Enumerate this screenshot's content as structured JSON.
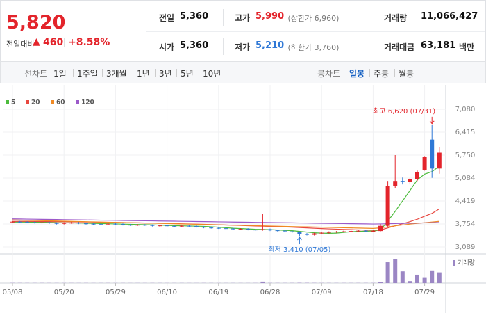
{
  "header": {
    "price": "5,820",
    "change_label": "전일대비",
    "change_arrow": "▲",
    "change": "460",
    "change_rate": "+8.58%",
    "stats": [
      {
        "label": "전일",
        "value": "5,360"
      },
      {
        "label": "고가",
        "value": "5,990",
        "note": "(상한가 6,960)"
      },
      {
        "label": "거래량",
        "value": "11,066,427"
      },
      {
        "label": "시가",
        "value": "5,360"
      },
      {
        "label": "저가",
        "value": "5,210",
        "note": "(하한가 3,760)"
      },
      {
        "label": "거래대금",
        "value": "63,181",
        "unit": "백만"
      }
    ]
  },
  "line_tabs": {
    "label": "선차트",
    "items": [
      "1일",
      "1주일",
      "3개월",
      "1년",
      "3년",
      "5년",
      "10년"
    ]
  },
  "candle_tabs": {
    "label": "봉차트",
    "items": [
      "일봉",
      "주봉",
      "월봉"
    ],
    "selected": "일봉"
  },
  "chart_data": {
    "type": "candlestick",
    "categories": [
      "05/08",
      null,
      null,
      null,
      null,
      null,
      null,
      "05/20",
      null,
      null,
      null,
      null,
      null,
      null,
      "05/29",
      null,
      null,
      null,
      null,
      null,
      null,
      "06/10",
      null,
      null,
      null,
      null,
      null,
      null,
      "06/19",
      null,
      null,
      null,
      null,
      null,
      null,
      "06/28",
      null,
      null,
      null,
      null,
      null,
      null,
      "07/09",
      null,
      null,
      null,
      null,
      null,
      null,
      "07/18",
      null,
      null,
      null,
      null,
      null,
      null,
      "07/29",
      null,
      null
    ],
    "open": [
      3800,
      3820,
      3810,
      3800,
      3790,
      3800,
      3780,
      3760,
      3780,
      3790,
      3770,
      3760,
      3750,
      3740,
      3760,
      3750,
      3730,
      3720,
      3730,
      3720,
      3700,
      3710,
      3690,
      3680,
      3700,
      3690,
      3670,
      3650,
      3640,
      3630,
      3620,
      3600,
      3610,
      3590,
      3580,
      3600,
      3570,
      3560,
      3540,
      3520,
      3470,
      3440,
      3480,
      3500,
      3520,
      3530,
      3540,
      3550,
      3560,
      3540,
      3550,
      3700,
      4850,
      5000,
      4980,
      5050,
      5320,
      6200,
      5360
    ],
    "high": [
      3840,
      3840,
      3830,
      3820,
      3820,
      3820,
      3800,
      3800,
      3810,
      3810,
      3790,
      3780,
      3770,
      3780,
      3780,
      3770,
      3750,
      3750,
      3750,
      3740,
      3730,
      3730,
      3710,
      3720,
      3720,
      3710,
      3690,
      3670,
      3660,
      3650,
      3640,
      3630,
      3630,
      3610,
      4040,
      3620,
      3590,
      3580,
      3560,
      3540,
      3490,
      3500,
      3520,
      3540,
      3550,
      3560,
      3570,
      3580,
      3580,
      3570,
      3750,
      5000,
      5750,
      5100,
      5080,
      5300,
      5720,
      6620,
      5990
    ],
    "low": [
      3780,
      3790,
      3780,
      3770,
      3770,
      3760,
      3740,
      3740,
      3760,
      3750,
      3740,
      3730,
      3720,
      3720,
      3730,
      3710,
      3700,
      3700,
      3700,
      3680,
      3680,
      3670,
      3660,
      3660,
      3670,
      3650,
      3630,
      3620,
      3610,
      3600,
      3580,
      3580,
      3570,
      3560,
      3560,
      3550,
      3540,
      3520,
      3500,
      3410,
      3420,
      3420,
      3460,
      3480,
      3500,
      3510,
      3520,
      3530,
      3520,
      3520,
      3540,
      3680,
      4800,
      4900,
      4900,
      5000,
      5300,
      5090,
      5210
    ],
    "close": [
      3820,
      3810,
      3800,
      3790,
      3800,
      3780,
      3760,
      3780,
      3790,
      3770,
      3760,
      3750,
      3740,
      3760,
      3750,
      3730,
      3720,
      3730,
      3720,
      3700,
      3710,
      3690,
      3680,
      3700,
      3690,
      3670,
      3650,
      3640,
      3630,
      3620,
      3600,
      3610,
      3590,
      3580,
      3600,
      3570,
      3560,
      3540,
      3520,
      3470,
      3440,
      3480,
      3500,
      3520,
      3530,
      3540,
      3550,
      3560,
      3540,
      3550,
      3700,
      4850,
      5000,
      4980,
      5050,
      5250,
      5700,
      5360,
      5820
    ],
    "up_color": "#e3242b",
    "down_color": "#2f78d6",
    "series": [
      {
        "name": "5",
        "color": "#4cbb3c",
        "values": [
          3810,
          3810,
          3810,
          3805,
          3805,
          3800,
          3790,
          3785,
          3785,
          3780,
          3775,
          3770,
          3765,
          3760,
          3755,
          3750,
          3745,
          3740,
          3735,
          3730,
          3720,
          3710,
          3705,
          3700,
          3695,
          3690,
          3685,
          3675,
          3660,
          3645,
          3630,
          3620,
          3610,
          3600,
          3595,
          3590,
          3580,
          3570,
          3560,
          3540,
          3520,
          3500,
          3490,
          3485,
          3490,
          3510,
          3530,
          3540,
          3545,
          3550,
          3580,
          3840,
          4120,
          4420,
          4720,
          5030,
          5200,
          5270,
          5430
        ]
      },
      {
        "name": "20",
        "color": "#e8473f",
        "values": [
          3830,
          3830,
          3828,
          3826,
          3824,
          3822,
          3820,
          3818,
          3816,
          3814,
          3812,
          3810,
          3806,
          3802,
          3798,
          3794,
          3790,
          3786,
          3782,
          3778,
          3774,
          3770,
          3765,
          3760,
          3755,
          3750,
          3745,
          3738,
          3731,
          3724,
          3717,
          3710,
          3703,
          3696,
          3690,
          3684,
          3676,
          3668,
          3660,
          3650,
          3640,
          3630,
          3620,
          3612,
          3604,
          3596,
          3590,
          3584,
          3578,
          3574,
          3580,
          3640,
          3700,
          3760,
          3820,
          3890,
          3980,
          4060,
          4190
        ]
      },
      {
        "name": "60",
        "color": "#f08a24",
        "values": [
          3870,
          3865,
          3860,
          3855,
          3850,
          3845,
          3840,
          3835,
          3830,
          3825,
          3820,
          3815,
          3810,
          3805,
          3800,
          3795,
          3790,
          3785,
          3780,
          3775,
          3770,
          3765,
          3760,
          3755,
          3750,
          3745,
          3740,
          3735,
          3730,
          3725,
          3720,
          3715,
          3710,
          3705,
          3700,
          3695,
          3690,
          3685,
          3680,
          3675,
          3670,
          3665,
          3660,
          3655,
          3650,
          3645,
          3640,
          3635,
          3630,
          3625,
          3640,
          3670,
          3700,
          3725,
          3750,
          3770,
          3790,
          3810,
          3830
        ]
      },
      {
        "name": "120",
        "color": "#9b59c9",
        "values": [
          3900,
          3897,
          3894,
          3891,
          3888,
          3885,
          3882,
          3879,
          3876,
          3873,
          3870,
          3867,
          3864,
          3861,
          3858,
          3855,
          3852,
          3849,
          3846,
          3843,
          3840,
          3837,
          3834,
          3831,
          3828,
          3825,
          3822,
          3819,
          3816,
          3813,
          3810,
          3807,
          3804,
          3801,
          3798,
          3795,
          3792,
          3789,
          3786,
          3783,
          3780,
          3777,
          3774,
          3771,
          3768,
          3765,
          3762,
          3759,
          3756,
          3753,
          3755,
          3760,
          3765,
          3770,
          3775,
          3780,
          3785,
          3790,
          3795
        ]
      }
    ],
    "ylim": [
      2887,
      7786
    ],
    "yticks": [
      {
        "value": 3089,
        "label": "3,089"
      },
      {
        "value": 3754,
        "label": "3,754"
      },
      {
        "value": 4419,
        "label": "4,419"
      },
      {
        "value": 5084,
        "label": "5,084"
      },
      {
        "value": 5750,
        "label": "5,750"
      },
      {
        "value": 6415,
        "label": "6,415"
      },
      {
        "value": 7080,
        "label": "7,080"
      }
    ],
    "grid": true,
    "annotations": {
      "high": "최고 6,620 (07/31)",
      "low": "최저 3,410 (07/05)"
    },
    "volume": {
      "name": "거래량",
      "color": "#9b86c4",
      "ylim": [
        0,
        30000000
      ],
      "values": [
        200000,
        180000,
        150000,
        160000,
        170000,
        150000,
        140000,
        160000,
        150000,
        140000,
        150000,
        130000,
        140000,
        150000,
        140000,
        130000,
        120000,
        140000,
        130000,
        150000,
        140000,
        130000,
        120000,
        140000,
        130000,
        120000,
        150000,
        140000,
        130000,
        120000,
        140000,
        130000,
        120000,
        150000,
        1500000,
        200000,
        180000,
        160000,
        170000,
        300000,
        250000,
        200000,
        180000,
        170000,
        160000,
        150000,
        160000,
        170000,
        180000,
        200000,
        1000000,
        21400000,
        24300000,
        12000000,
        2000000,
        8600000,
        6000000,
        13000000,
        11000000
      ]
    }
  }
}
